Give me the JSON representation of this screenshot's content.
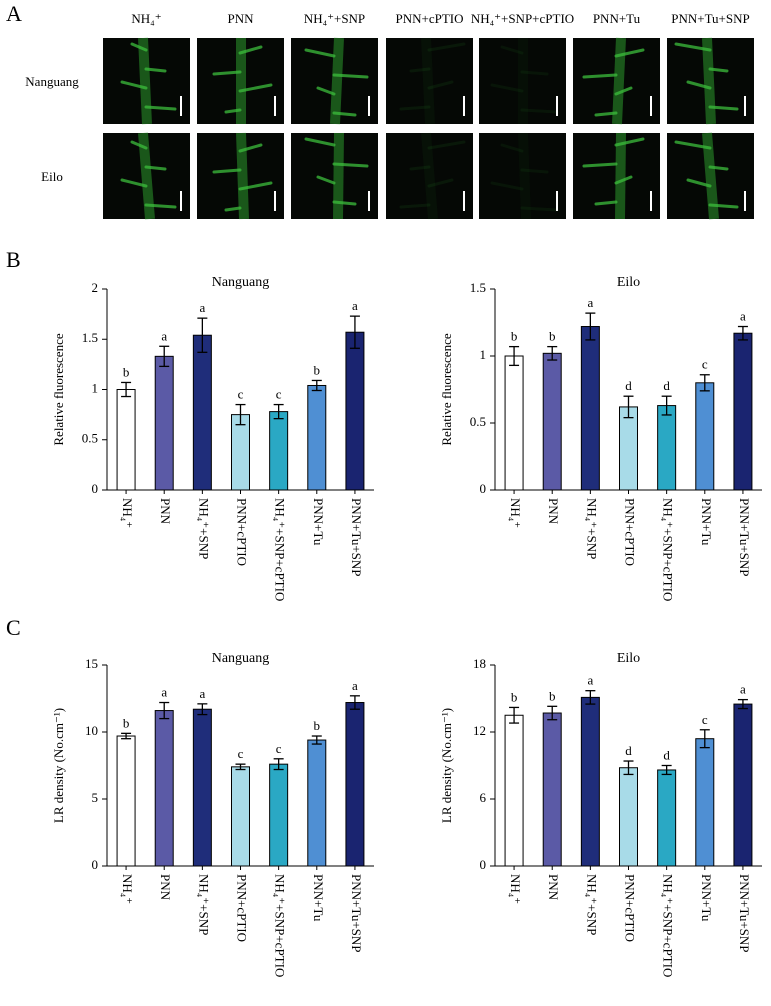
{
  "panel_labels": [
    "A",
    "B",
    "C"
  ],
  "images": {
    "columns": [
      "NH₄⁺",
      "PNN",
      "NH₄⁺+SNP",
      "PNN+cPTIO",
      "NH₄⁺+SNP+cPTIO",
      "PNN+Tu",
      "PNN+Tu+SNP"
    ],
    "rows": [
      "Nanguang",
      "Eilo"
    ]
  },
  "chart_data": [
    {
      "type": "bar",
      "title": "Nanguang",
      "y_label": "Relative fluorescence",
      "categories": [
        "NH₄⁺",
        "PNN",
        "NH₄⁺+SNP",
        "PNN+cPTIO",
        "NH₄⁺+SNP+cPTIO",
        "PNN+Tu",
        "PNN+Tu+SNP"
      ],
      "values": [
        1.0,
        1.33,
        1.54,
        0.75,
        0.78,
        1.04,
        1.57
      ],
      "errors": [
        0.07,
        0.1,
        0.17,
        0.1,
        0.07,
        0.05,
        0.16
      ],
      "letters": [
        "b",
        "a",
        "a",
        "c",
        "c",
        "b",
        "a"
      ],
      "colors": [
        "#ffffff",
        "#5b5aa6",
        "#1f2d7a",
        "#a8dbe8",
        "#2aa8c4",
        "#4f8fd3",
        "#1a2470"
      ],
      "ylim": [
        0,
        2
      ],
      "yticks": [
        0,
        0.5,
        1,
        1.5,
        2
      ]
    },
    {
      "type": "bar",
      "title": "Eilo",
      "y_label": "Relative fluorescence",
      "categories": [
        "NH₄⁺",
        "PNN",
        "NH₄⁺+SNP",
        "PNN+cPTIO",
        "NH₄⁺+SNP+cPTIO",
        "PNN+Tu",
        "PNN+Tu+SNP"
      ],
      "values": [
        1.0,
        1.02,
        1.22,
        0.62,
        0.63,
        0.8,
        1.17
      ],
      "errors": [
        0.07,
        0.05,
        0.1,
        0.08,
        0.07,
        0.06,
        0.05
      ],
      "letters": [
        "b",
        "b",
        "a",
        "d",
        "d",
        "c",
        "a"
      ],
      "colors": [
        "#ffffff",
        "#5b5aa6",
        "#1f2d7a",
        "#a8dbe8",
        "#2aa8c4",
        "#4f8fd3",
        "#1a2470"
      ],
      "ylim": [
        0,
        1.5
      ],
      "yticks": [
        0,
        0.5,
        1,
        1.5
      ]
    },
    {
      "type": "bar",
      "title": "Nanguang",
      "y_label": "LR density (No.cm⁻¹)",
      "categories": [
        "NH₄⁺",
        "PNN",
        "NH₄⁺+SNP",
        "PNN+cPTIO",
        "NH₄⁺+SNP+cPTIO",
        "PNN+Tu",
        "PNN+Tu+SNP"
      ],
      "values": [
        9.7,
        11.6,
        11.7,
        7.4,
        7.6,
        9.4,
        12.2
      ],
      "errors": [
        0.2,
        0.6,
        0.4,
        0.2,
        0.4,
        0.3,
        0.5
      ],
      "letters": [
        "b",
        "a",
        "a",
        "c",
        "c",
        "b",
        "a"
      ],
      "colors": [
        "#ffffff",
        "#5b5aa6",
        "#1f2d7a",
        "#a8dbe8",
        "#2aa8c4",
        "#4f8fd3",
        "#1a2470"
      ],
      "ylim": [
        0,
        15
      ],
      "yticks": [
        0,
        5,
        10,
        15
      ]
    },
    {
      "type": "bar",
      "title": "Eilo",
      "y_label": "LR density (No.cm⁻¹)",
      "categories": [
        "NH₄⁺",
        "PNN",
        "NH₄⁺+SNP",
        "PNN+cPTIO",
        "NH₄⁺+SNP+cPTIO",
        "PNN+Tu",
        "PNN+Tu+SNP"
      ],
      "values": [
        13.5,
        13.7,
        15.1,
        8.8,
        8.6,
        11.4,
        14.5
      ],
      "errors": [
        0.7,
        0.6,
        0.6,
        0.6,
        0.4,
        0.8,
        0.4
      ],
      "letters": [
        "b",
        "b",
        "a",
        "d",
        "d",
        "c",
        "a"
      ],
      "colors": [
        "#ffffff",
        "#5b5aa6",
        "#1f2d7a",
        "#a8dbe8",
        "#2aa8c4",
        "#4f8fd3",
        "#1a2470"
      ],
      "ylim": [
        0,
        18
      ],
      "yticks": [
        0,
        6,
        12,
        18
      ]
    }
  ]
}
